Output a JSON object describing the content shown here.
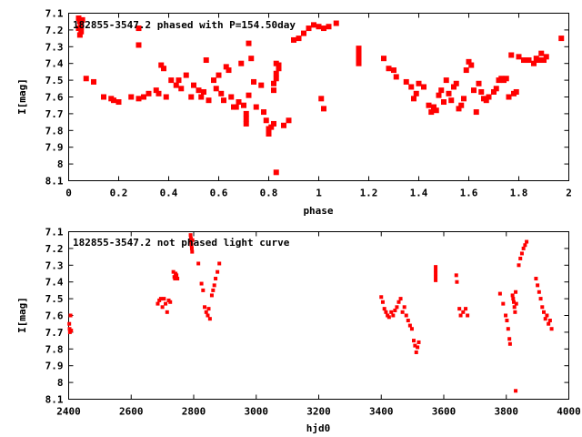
{
  "chart_data": [
    {
      "type": "scatter",
      "title": "182855-3547.2 phased with P=154.50day",
      "xlabel": "phase",
      "ylabel": "I[mag]",
      "xlim": [
        0,
        2
      ],
      "ylim": [
        8.1,
        7.1
      ],
      "y_inverted": true,
      "xticks": [
        0,
        0.2,
        0.4,
        0.6,
        0.8,
        1,
        1.2,
        1.4,
        1.6,
        1.8,
        2
      ],
      "xtick_labels": [
        "0",
        "0.2",
        "0.4",
        "0.6",
        "0.8",
        "1",
        "1.2",
        "1.4",
        "1.6",
        "1.8",
        "2"
      ],
      "yticks": [
        7.1,
        7.2,
        7.3,
        7.4,
        7.5,
        7.6,
        7.7,
        7.8,
        7.9,
        8,
        8.1
      ],
      "ytick_labels": [
        "7.1",
        "7.2",
        "7.3",
        "7.4",
        "7.5",
        "7.6",
        "7.7",
        "7.8",
        "7.9",
        "8",
        "8.1"
      ],
      "grid": false,
      "marker_color": "#ff0000",
      "points": [
        [
          0.04,
          7.13
        ],
        [
          0.045,
          7.15
        ],
        [
          0.05,
          7.17
        ],
        [
          0.04,
          7.19
        ],
        [
          0.05,
          7.21
        ],
        [
          0.045,
          7.23
        ],
        [
          0.05,
          7.18
        ],
        [
          0.055,
          7.14
        ],
        [
          0.07,
          7.49
        ],
        [
          0.1,
          7.51
        ],
        [
          0.14,
          7.6
        ],
        [
          0.17,
          7.61
        ],
        [
          0.18,
          7.62
        ],
        [
          0.2,
          7.63
        ],
        [
          0.25,
          7.6
        ],
        [
          0.28,
          7.61
        ],
        [
          0.28,
          7.29
        ],
        [
          0.28,
          7.19
        ],
        [
          0.3,
          7.6
        ],
        [
          0.32,
          7.58
        ],
        [
          0.35,
          7.56
        ],
        [
          0.36,
          7.58
        ],
        [
          0.37,
          7.41
        ],
        [
          0.38,
          7.43
        ],
        [
          0.39,
          7.6
        ],
        [
          0.41,
          7.5
        ],
        [
          0.43,
          7.53
        ],
        [
          0.44,
          7.5
        ],
        [
          0.45,
          7.55
        ],
        [
          0.47,
          7.47
        ],
        [
          0.49,
          7.6
        ],
        [
          0.5,
          7.53
        ],
        [
          0.52,
          7.56
        ],
        [
          0.53,
          7.6
        ],
        [
          0.54,
          7.57
        ],
        [
          0.55,
          7.38
        ],
        [
          0.56,
          7.62
        ],
        [
          0.58,
          7.5
        ],
        [
          0.59,
          7.55
        ],
        [
          0.6,
          7.47
        ],
        [
          0.61,
          7.58
        ],
        [
          0.62,
          7.62
        ],
        [
          0.63,
          7.42
        ],
        [
          0.64,
          7.44
        ],
        [
          0.65,
          7.6
        ],
        [
          0.66,
          7.66
        ],
        [
          0.67,
          7.66
        ],
        [
          0.68,
          7.63
        ],
        [
          0.69,
          7.4
        ],
        [
          0.7,
          7.65
        ],
        [
          0.71,
          7.7
        ],
        [
          0.71,
          7.73
        ],
        [
          0.71,
          7.76
        ],
        [
          0.72,
          7.59
        ],
        [
          0.73,
          7.37
        ],
        [
          0.72,
          7.28
        ],
        [
          0.74,
          7.51
        ],
        [
          0.75,
          7.66
        ],
        [
          0.77,
          7.53
        ],
        [
          0.78,
          7.69
        ],
        [
          0.79,
          7.74
        ],
        [
          0.8,
          7.79
        ],
        [
          0.8,
          7.82
        ],
        [
          0.81,
          7.78
        ],
        [
          0.82,
          7.56
        ],
        [
          0.82,
          7.52
        ],
        [
          0.83,
          7.49
        ],
        [
          0.83,
          7.46
        ],
        [
          0.84,
          7.43
        ],
        [
          0.84,
          7.41
        ],
        [
          0.83,
          7.4
        ],
        [
          0.82,
          7.76
        ],
        [
          0.83,
          8.05
        ],
        [
          0.86,
          7.77
        ],
        [
          0.88,
          7.74
        ],
        [
          0.9,
          7.26
        ],
        [
          0.92,
          7.25
        ],
        [
          0.94,
          7.22
        ],
        [
          0.96,
          7.19
        ],
        [
          0.98,
          7.17
        ],
        [
          1.0,
          7.18
        ],
        [
          1.02,
          7.19
        ],
        [
          1.01,
          7.61
        ],
        [
          1.02,
          7.67
        ],
        [
          1.04,
          7.18
        ],
        [
          1.07,
          7.16
        ],
        [
          1.16,
          7.31
        ],
        [
          1.16,
          7.34
        ],
        [
          1.16,
          7.37
        ],
        [
          1.16,
          7.4
        ],
        [
          1.26,
          7.37
        ],
        [
          1.28,
          7.43
        ],
        [
          1.3,
          7.44
        ],
        [
          1.31,
          7.48
        ],
        [
          1.35,
          7.51
        ],
        [
          1.37,
          7.54
        ],
        [
          1.38,
          7.61
        ],
        [
          1.39,
          7.58
        ],
        [
          1.4,
          7.52
        ],
        [
          1.42,
          7.54
        ],
        [
          1.44,
          7.65
        ],
        [
          1.45,
          7.69
        ],
        [
          1.46,
          7.66
        ],
        [
          1.47,
          7.68
        ],
        [
          1.48,
          7.59
        ],
        [
          1.49,
          7.56
        ],
        [
          1.5,
          7.63
        ],
        [
          1.51,
          7.5
        ],
        [
          1.52,
          7.58
        ],
        [
          1.53,
          7.62
        ],
        [
          1.54,
          7.54
        ],
        [
          1.55,
          7.52
        ],
        [
          1.56,
          7.67
        ],
        [
          1.57,
          7.65
        ],
        [
          1.58,
          7.61
        ],
        [
          1.59,
          7.44
        ],
        [
          1.6,
          7.39
        ],
        [
          1.61,
          7.41
        ],
        [
          1.62,
          7.56
        ],
        [
          1.63,
          7.69
        ],
        [
          1.64,
          7.52
        ],
        [
          1.65,
          7.57
        ],
        [
          1.66,
          7.61
        ],
        [
          1.67,
          7.62
        ],
        [
          1.68,
          7.6
        ],
        [
          1.7,
          7.57
        ],
        [
          1.71,
          7.55
        ],
        [
          1.72,
          7.5
        ],
        [
          1.73,
          7.49
        ],
        [
          1.74,
          7.5
        ],
        [
          1.75,
          7.49
        ],
        [
          1.76,
          7.6
        ],
        [
          1.77,
          7.35
        ],
        [
          1.78,
          7.58
        ],
        [
          1.79,
          7.57
        ],
        [
          1.8,
          7.36
        ],
        [
          1.82,
          7.38
        ],
        [
          1.83,
          7.38
        ],
        [
          1.84,
          7.38
        ],
        [
          1.86,
          7.4
        ],
        [
          1.87,
          7.37
        ],
        [
          1.88,
          7.38
        ],
        [
          1.89,
          7.34
        ],
        [
          1.9,
          7.38
        ],
        [
          1.91,
          7.36
        ],
        [
          1.97,
          7.25
        ]
      ]
    },
    {
      "type": "scatter",
      "title": "182855-3547.2 not phased light curve",
      "xlabel": "hjd0",
      "ylabel": "I[mag]",
      "xlim": [
        2400,
        4000
      ],
      "ylim": [
        8.1,
        7.1
      ],
      "y_inverted": true,
      "xticks": [
        2400,
        2600,
        2800,
        3000,
        3200,
        3400,
        3600,
        3800,
        4000
      ],
      "xtick_labels": [
        "2400",
        "2600",
        "2800",
        "3000",
        "3200",
        "3400",
        "3600",
        "3800",
        "4000"
      ],
      "yticks": [
        7.1,
        7.2,
        7.3,
        7.4,
        7.5,
        7.6,
        7.7,
        7.8,
        7.9,
        8,
        8.1
      ],
      "ytick_labels": [
        "7.1",
        "7.2",
        "7.3",
        "7.4",
        "7.5",
        "7.6",
        "7.7",
        "7.8",
        "7.9",
        "8",
        "8.1"
      ],
      "grid": false,
      "marker_color": "#ff0000",
      "points": [
        [
          2402,
          7.65
        ],
        [
          2403,
          7.68
        ],
        [
          2404,
          7.7
        ],
        [
          2406,
          7.6
        ],
        [
          2408,
          7.69
        ],
        [
          2685,
          7.53
        ],
        [
          2690,
          7.51
        ],
        [
          2695,
          7.5
        ],
        [
          2700,
          7.55
        ],
        [
          2705,
          7.5
        ],
        [
          2710,
          7.53
        ],
        [
          2715,
          7.58
        ],
        [
          2720,
          7.51
        ],
        [
          2725,
          7.52
        ],
        [
          2735,
          7.34
        ],
        [
          2738,
          7.37
        ],
        [
          2740,
          7.38
        ],
        [
          2742,
          7.35
        ],
        [
          2745,
          7.36
        ],
        [
          2748,
          7.38
        ],
        [
          2790,
          7.12
        ],
        [
          2791,
          7.14
        ],
        [
          2792,
          7.16
        ],
        [
          2793,
          7.18
        ],
        [
          2794,
          7.2
        ],
        [
          2795,
          7.22
        ],
        [
          2796,
          7.15
        ],
        [
          2815,
          7.29
        ],
        [
          2825,
          7.41
        ],
        [
          2830,
          7.45
        ],
        [
          2835,
          7.55
        ],
        [
          2840,
          7.58
        ],
        [
          2845,
          7.6
        ],
        [
          2848,
          7.56
        ],
        [
          2852,
          7.62
        ],
        [
          2858,
          7.48
        ],
        [
          2862,
          7.45
        ],
        [
          2866,
          7.42
        ],
        [
          2870,
          7.38
        ],
        [
          2876,
          7.34
        ],
        [
          2882,
          7.29
        ],
        [
          3400,
          7.49
        ],
        [
          3405,
          7.52
        ],
        [
          3410,
          7.56
        ],
        [
          3415,
          7.58
        ],
        [
          3420,
          7.6
        ],
        [
          3425,
          7.61
        ],
        [
          3432,
          7.58
        ],
        [
          3438,
          7.6
        ],
        [
          3444,
          7.57
        ],
        [
          3450,
          7.55
        ],
        [
          3456,
          7.52
        ],
        [
          3462,
          7.5
        ],
        [
          3468,
          7.58
        ],
        [
          3474,
          7.55
        ],
        [
          3480,
          7.6
        ],
        [
          3486,
          7.63
        ],
        [
          3492,
          7.66
        ],
        [
          3498,
          7.68
        ],
        [
          3504,
          7.75
        ],
        [
          3508,
          7.78
        ],
        [
          3512,
          7.82
        ],
        [
          3516,
          7.79
        ],
        [
          3520,
          7.76
        ],
        [
          3574,
          7.31
        ],
        [
          3574,
          7.33
        ],
        [
          3574,
          7.35
        ],
        [
          3574,
          7.37
        ],
        [
          3574,
          7.39
        ],
        [
          3640,
          7.36
        ],
        [
          3642,
          7.4
        ],
        [
          3650,
          7.56
        ],
        [
          3654,
          7.6
        ],
        [
          3662,
          7.58
        ],
        [
          3670,
          7.56
        ],
        [
          3676,
          7.6
        ],
        [
          3780,
          7.47
        ],
        [
          3790,
          7.53
        ],
        [
          3798,
          7.6
        ],
        [
          3802,
          7.63
        ],
        [
          3806,
          7.68
        ],
        [
          3810,
          7.74
        ],
        [
          3812,
          7.77
        ],
        [
          3820,
          7.48
        ],
        [
          3822,
          7.5
        ],
        [
          3824,
          7.52
        ],
        [
          3826,
          7.55
        ],
        [
          3828,
          7.58
        ],
        [
          3830,
          7.46
        ],
        [
          3832,
          7.53
        ],
        [
          3830,
          8.05
        ],
        [
          3840,
          7.3
        ],
        [
          3845,
          7.26
        ],
        [
          3850,
          7.23
        ],
        [
          3855,
          7.2
        ],
        [
          3860,
          7.18
        ],
        [
          3865,
          7.16
        ],
        [
          3895,
          7.38
        ],
        [
          3900,
          7.42
        ],
        [
          3905,
          7.46
        ],
        [
          3910,
          7.5
        ],
        [
          3915,
          7.55
        ],
        [
          3920,
          7.58
        ],
        [
          3925,
          7.62
        ],
        [
          3930,
          7.6
        ],
        [
          3935,
          7.65
        ],
        [
          3940,
          7.63
        ],
        [
          3945,
          7.68
        ]
      ]
    }
  ]
}
